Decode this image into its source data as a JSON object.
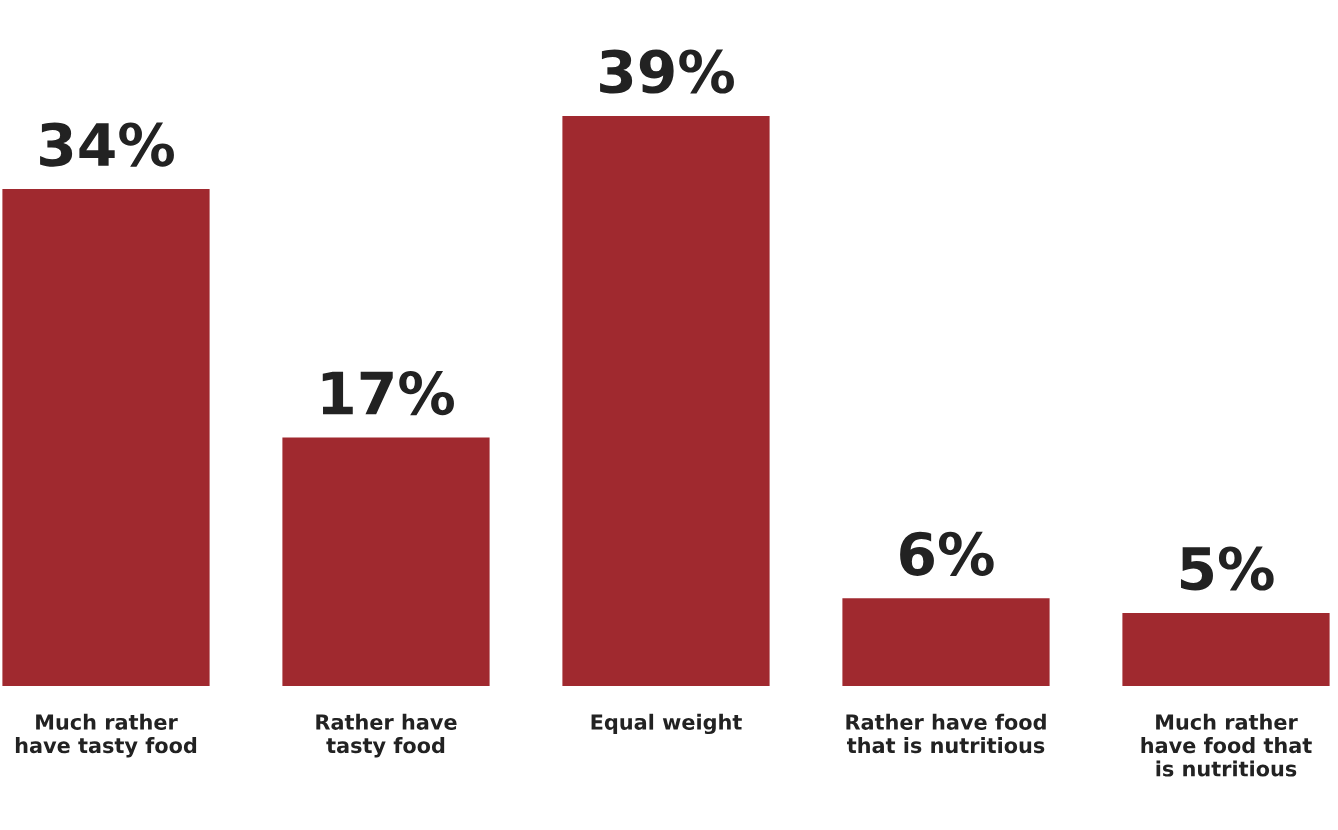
{
  "chart_data": {
    "type": "bar",
    "categories": [
      "Much rather\nhave tasty food",
      "Rather have\ntasty food",
      "Equal weight",
      "Rather have food\nthat is nutritious",
      "Much rather\nhave food that\nis nutritious"
    ],
    "values": [
      34,
      17,
      39,
      6,
      5
    ],
    "value_labels": [
      "34%",
      "17%",
      "39%",
      "6%",
      "5%"
    ],
    "color": "#a0292f"
  }
}
